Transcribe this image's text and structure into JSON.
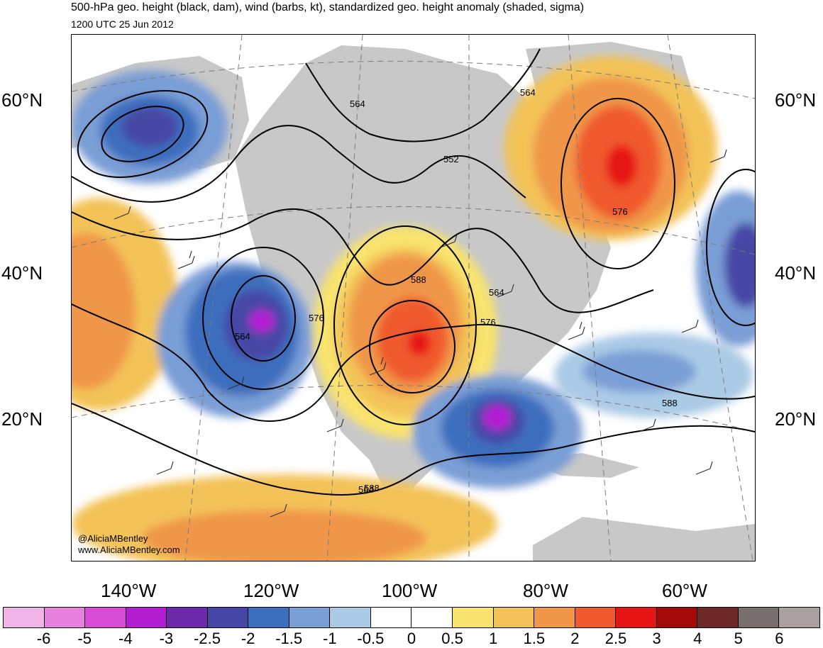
{
  "header": {
    "title": "500-hPa geo. height (black, dam), wind (barbs, kt), standardized geo. height anomaly (shaded, sigma)",
    "valid_time": "1200 UTC 25 Jun 2012"
  },
  "map": {
    "region": "North America and adjacent oceans",
    "projection_labels": {
      "latitudes": [
        "60°N",
        "40°N",
        "20°N"
      ],
      "longitudes": [
        "140°W",
        "120°W",
        "100°W",
        "80°W",
        "60°W"
      ]
    },
    "contour_labels": [
      "564",
      "564",
      "552",
      "564",
      "576",
      "564",
      "588",
      "576",
      "564",
      "576",
      "588",
      "588"
    ],
    "land_color": "#c8c8c8",
    "contour_color": "#000000"
  },
  "credit": {
    "handle": "@AliciaMBentley",
    "website": "www.AliciaMBentley.com"
  },
  "colorbar": {
    "colors": [
      "#f0b4e6",
      "#e880e0",
      "#d84cd8",
      "#b41ed2",
      "#6e28aa",
      "#4646a6",
      "#3c6ebe",
      "#7a9ed6",
      "#aacae6",
      "#ffffff",
      "#ffffff",
      "#f8e36e",
      "#f3c359",
      "#f09648",
      "#f05a2d",
      "#e61414",
      "#a50a0a",
      "#6e2828",
      "#786e6e",
      "#aaa0a0"
    ],
    "labels": [
      "-6",
      "-5",
      "-4",
      "-3",
      "-2.5",
      "-2",
      "-1.5",
      "-1",
      "-0.5",
      "0",
      "0.5",
      "1",
      "1.5",
      "2",
      "2.5",
      "3",
      "4",
      "5",
      "6"
    ]
  }
}
